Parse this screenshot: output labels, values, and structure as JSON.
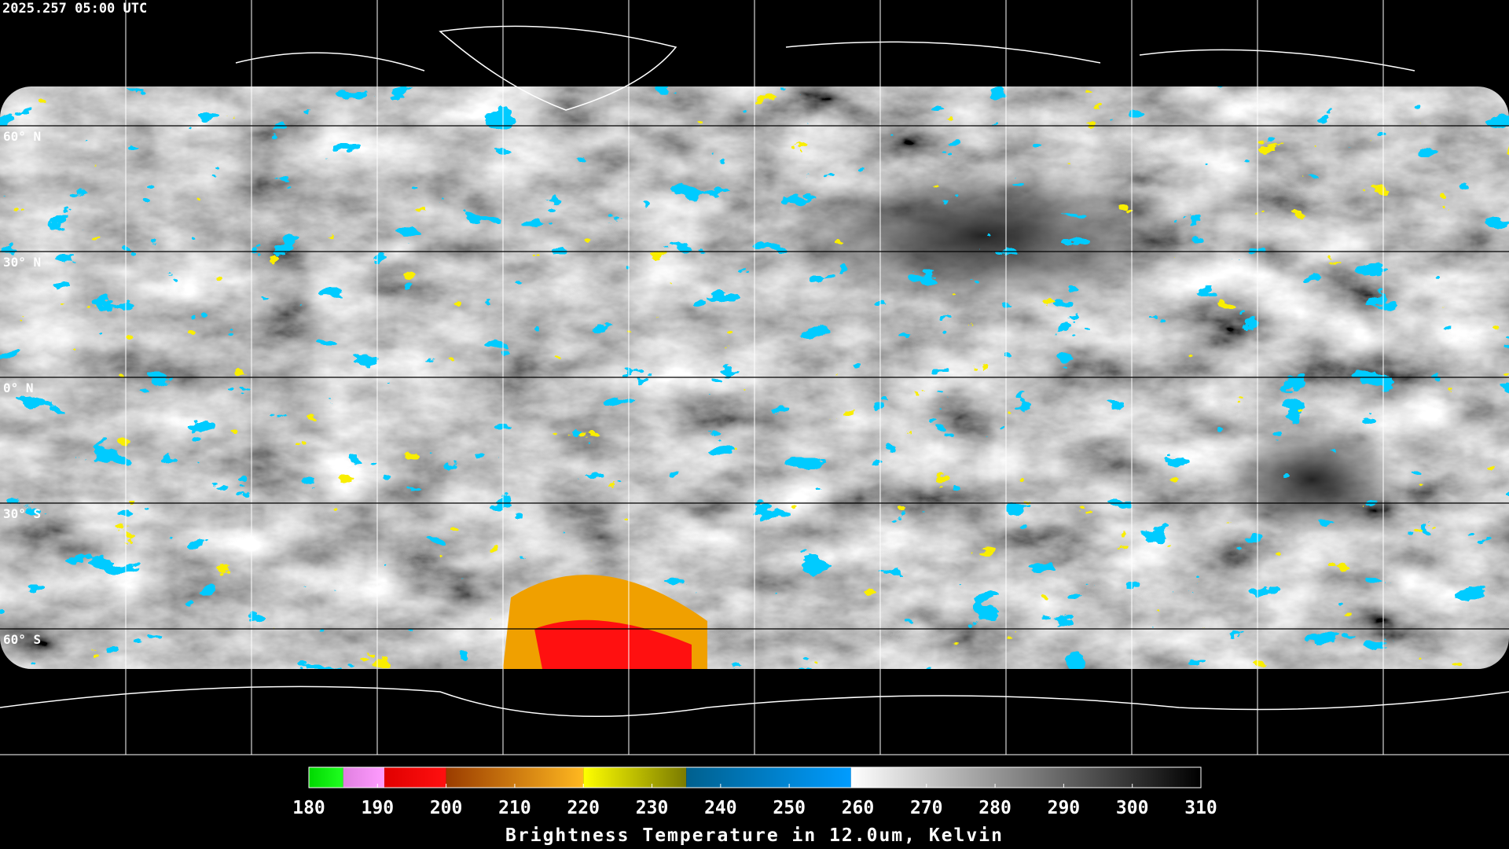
{
  "header": {
    "timestamp": "2025.257 05:00 UTC"
  },
  "map": {
    "latitude_labels": [
      "60° N",
      "30° N",
      "0° N",
      "30° S",
      "60° S"
    ]
  },
  "colorbar": {
    "range": [
      180,
      310
    ],
    "ticks": [
      180,
      190,
      200,
      210,
      220,
      230,
      240,
      250,
      260,
      270,
      280,
      290,
      300,
      310
    ],
    "label": "Brightness Temperature in 12.0um, Kelvin",
    "segments": [
      {
        "from": 180,
        "to": 185,
        "start_color": "#00d800",
        "end_color": "#20ff20"
      },
      {
        "from": 185,
        "to": 191,
        "start_color": "#e080e0",
        "end_color": "#ff9cff"
      },
      {
        "from": 191,
        "to": 200,
        "start_color": "#e00000",
        "end_color": "#ff1010"
      },
      {
        "from": 200,
        "to": 220,
        "start_color": "#9a3c00",
        "end_color": "#ffb820"
      },
      {
        "from": 220,
        "to": 235,
        "start_color": "#ffff00",
        "end_color": "#7a7a00"
      },
      {
        "from": 235,
        "to": 259,
        "start_color": "#00608e",
        "end_color": "#009cff"
      },
      {
        "from": 259,
        "to": 310,
        "start_color": "#ffffff",
        "end_color": "#000000"
      }
    ]
  }
}
